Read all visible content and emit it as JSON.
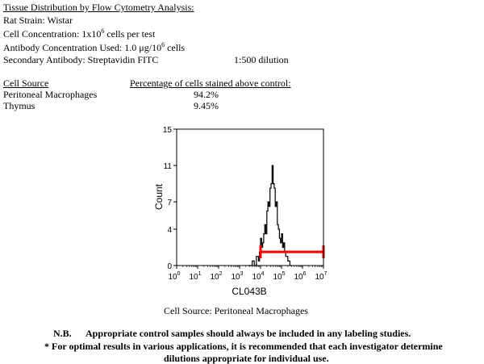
{
  "header": {
    "title": "Tissue Distribution by Flow Cytometry Analysis:",
    "strain": "Rat Strain: Wistar",
    "concentration_prefix": "Cell Concentration:  1x10",
    "concentration_exp": "6",
    "concentration_suffix": " cells per test",
    "antibody_prefix": "Antibody Concentration Used: 1.0 μg/10",
    "antibody_exp": "6",
    "antibody_suffix": " cells",
    "secondary": "Secondary Antibody:  Streptavidin FITC",
    "dilution": "1:500 dilution"
  },
  "table": {
    "col1_header": "Cell Source",
    "col2_header": "Percentage of cells stained above control:",
    "rows": [
      {
        "source": "Peritoneal Macrophages",
        "percent": "94.2%"
      },
      {
        "source": "Thymus",
        "percent": "9.45%"
      }
    ]
  },
  "chart_data": {
    "type": "histogram",
    "xlabel": "CL043B",
    "ylabel": "Count",
    "x_scale": "log",
    "xlim": [
      1,
      10000000
    ],
    "ylim": [
      0,
      15
    ],
    "yticks": [
      0,
      4,
      7,
      11,
      15
    ],
    "xticks": [
      {
        "base": "10",
        "exp": "0"
      },
      {
        "base": "10",
        "exp": "1"
      },
      {
        "base": "10",
        "exp": "2"
      },
      {
        "base": "10",
        "exp": "3"
      },
      {
        "base": "10",
        "exp": "4"
      },
      {
        "base": "10",
        "exp": "5"
      },
      {
        "base": "10",
        "exp": "6"
      },
      {
        "base": "10",
        "exp": "7"
      }
    ],
    "series_color": "#000000",
    "histogram_log10x": [
      3.4,
      3.6,
      3.7,
      3.8,
      3.9,
      3.95,
      4.0,
      4.05,
      4.1,
      4.15,
      4.2,
      4.25,
      4.3,
      4.35,
      4.4,
      4.45,
      4.5,
      4.55,
      4.6,
      4.65,
      4.7,
      4.75,
      4.8,
      4.85,
      4.9,
      4.95,
      5.0,
      5.05,
      5.1,
      5.15,
      5.2,
      5.3,
      5.4,
      5.5
    ],
    "histogram_counts": [
      0,
      0.5,
      0,
      1,
      0.5,
      1.5,
      3,
      2,
      2.5,
      3.5,
      4.5,
      3.5,
      6,
      7,
      6.5,
      8.5,
      9,
      11,
      9,
      8.5,
      6.5,
      7,
      4.5,
      4,
      3,
      2.5,
      3.5,
      2,
      2.5,
      1.5,
      1,
      0.5,
      0,
      0
    ],
    "gate": {
      "x_start": 10000,
      "x_end": 10000000,
      "y": 1.5,
      "color": "#ff0000"
    }
  },
  "caption": "Cell Source: Peritoneal Macrophages",
  "notes": {
    "nb_label": "N.B.",
    "nb_text": "Appropriate control samples should always be included in any labeling studies.",
    "line2": "* For optimal results in various applications, it is recommended that each investigator determine",
    "line3": "dilutions appropriate for individual use."
  }
}
